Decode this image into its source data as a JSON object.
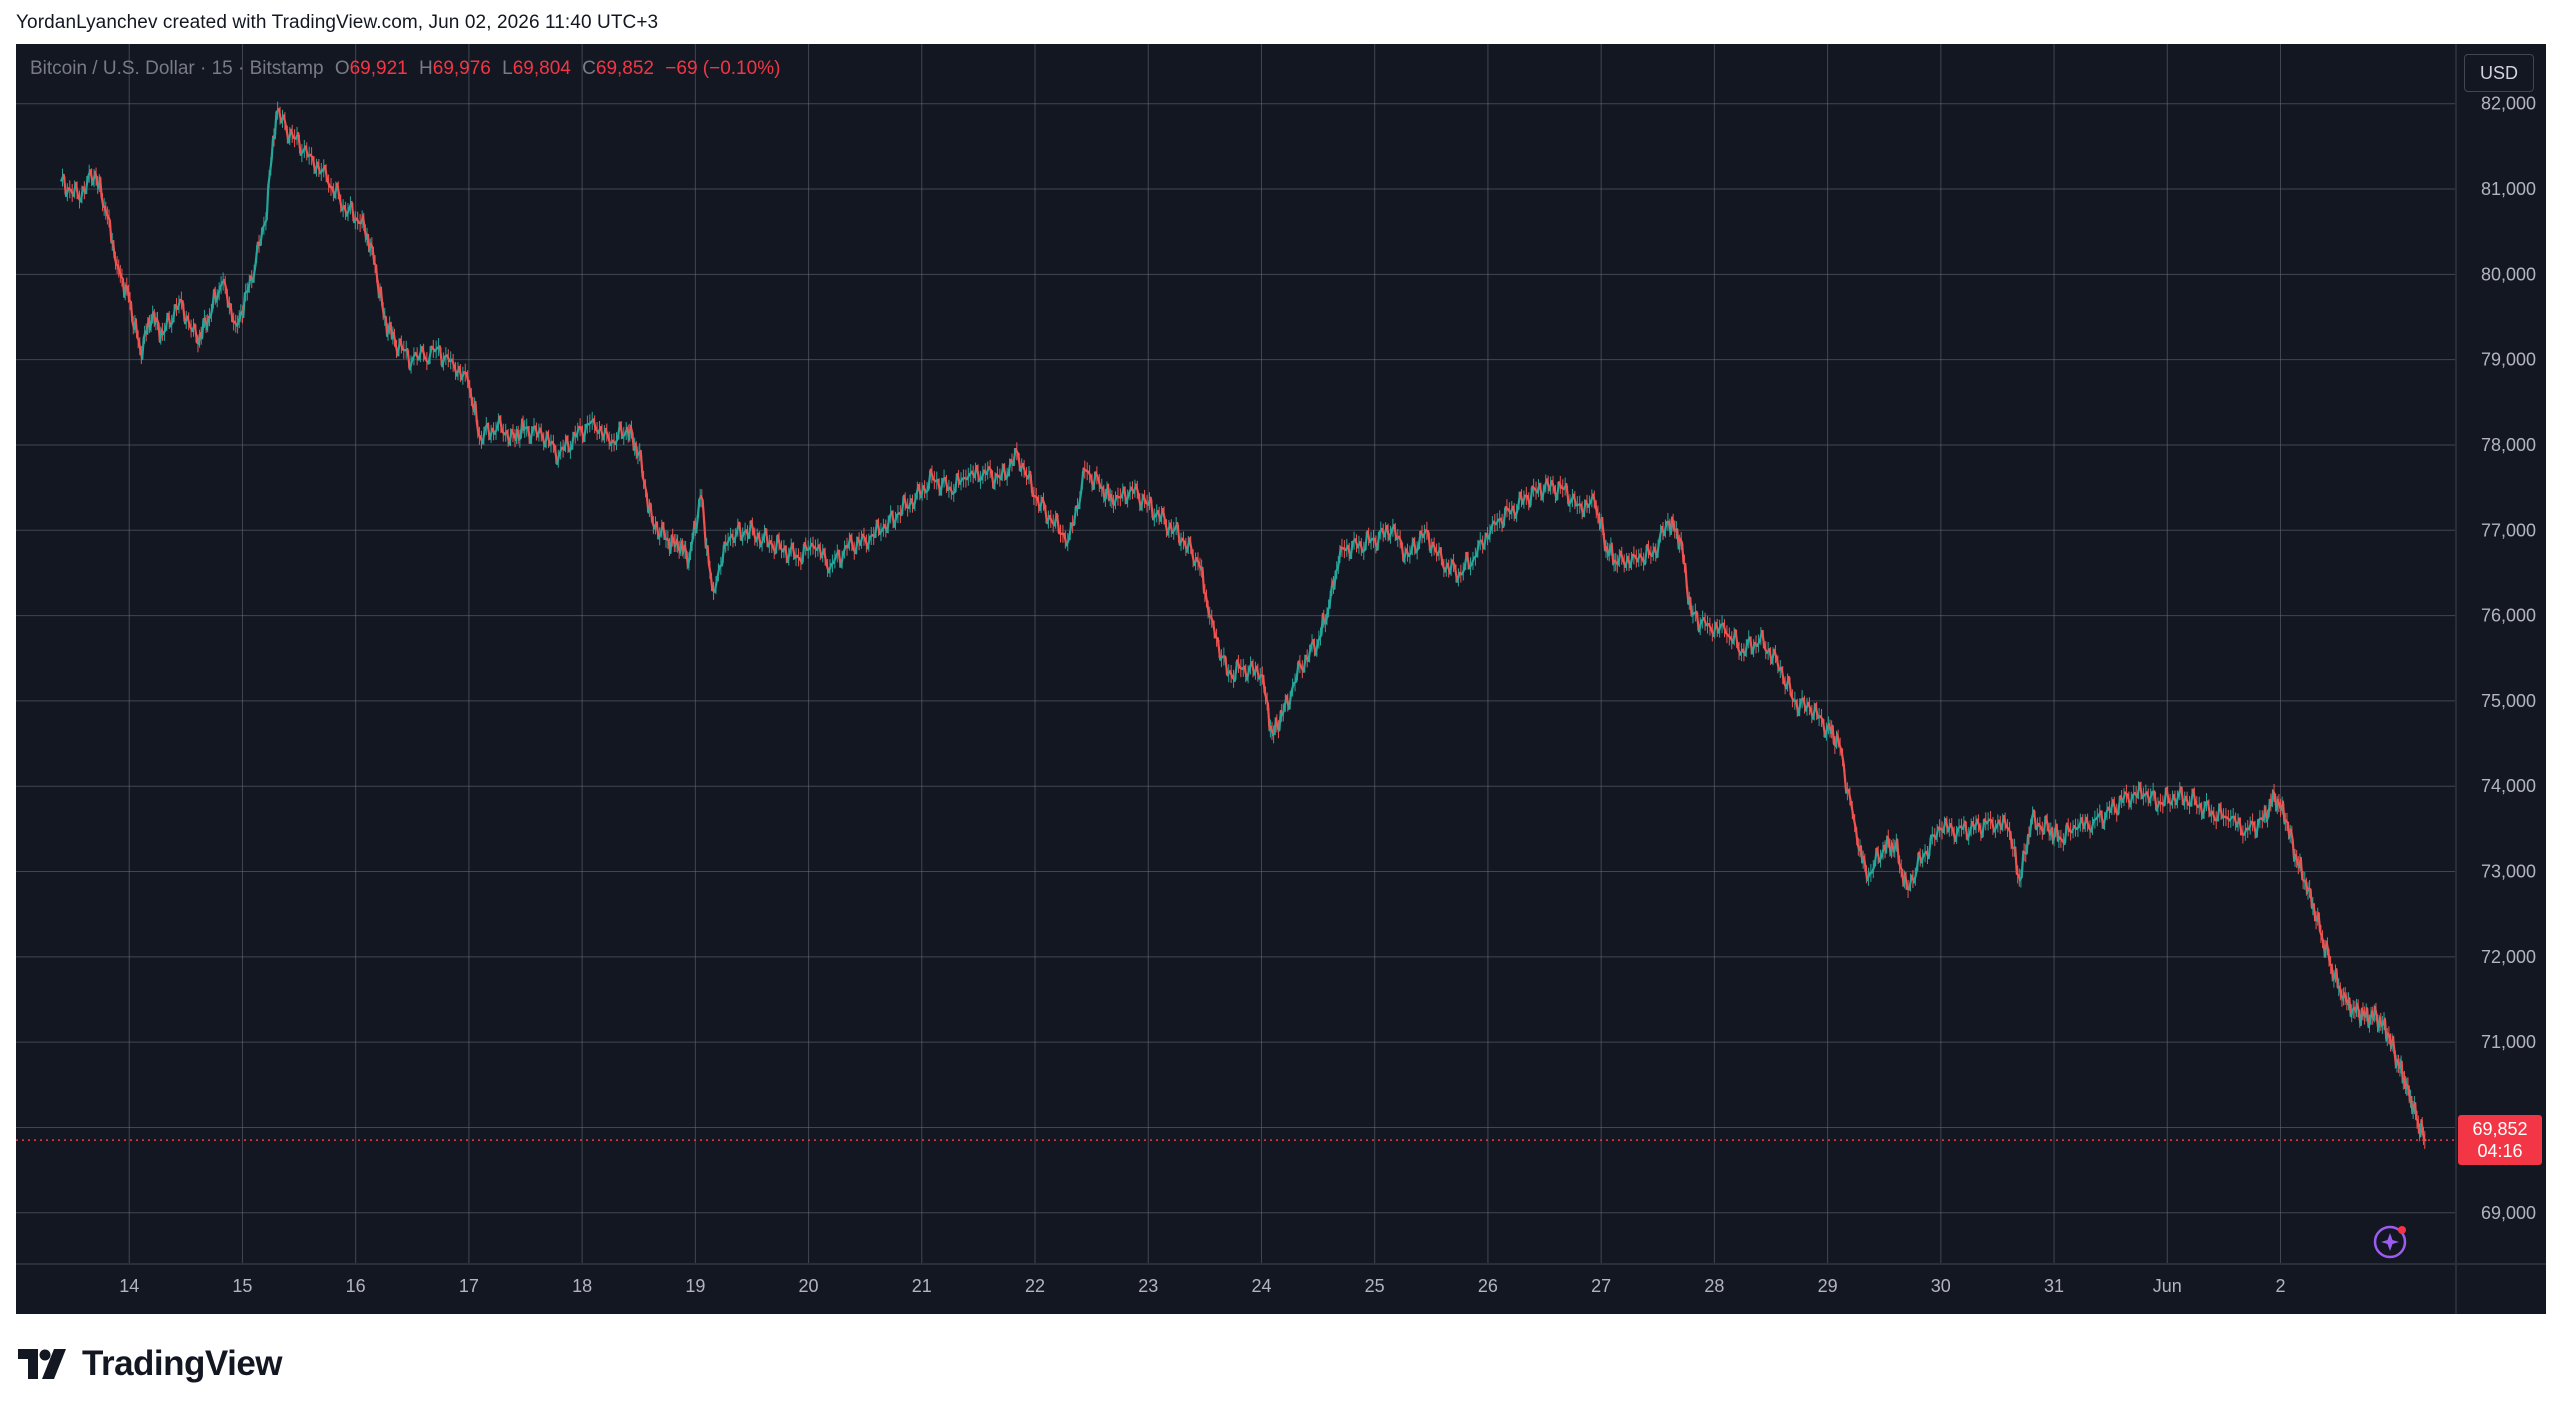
{
  "header": {
    "credit": "YordanLyanchev created with TradingView.com, Jun 02, 2026 11:40 UTC+3"
  },
  "legend": {
    "symbol": "Bitcoin / U.S. Dollar · 15 · Bitstamp",
    "o_label": "O",
    "o_value": "69,921",
    "h_label": "H",
    "h_value": "69,976",
    "l_label": "L",
    "l_value": "69,804",
    "c_label": "C",
    "c_value": "69,852",
    "change": "−69 (−0.10%)"
  },
  "currency_button": "USD",
  "last_price": {
    "value": "69,852",
    "countdown": "04:16"
  },
  "footer": {
    "brand": "TradingView"
  },
  "colors": {
    "background": "#131722",
    "grid": "#6a6d78",
    "up": "#26a69a",
    "down": "#ef5350",
    "axis_text": "#b2b5be"
  },
  "chart_data": {
    "type": "line",
    "title": "",
    "xlabel": "",
    "ylabel": "",
    "x_ticks": [
      "14",
      "15",
      "16",
      "17",
      "18",
      "19",
      "20",
      "21",
      "22",
      "23",
      "24",
      "25",
      "26",
      "27",
      "28",
      "29",
      "30",
      "31",
      "Jun",
      "2"
    ],
    "y_ticks": [
      "82,000",
      "81,000",
      "80,000",
      "79,000",
      "78,000",
      "77,000",
      "76,000",
      "75,000",
      "74,000",
      "73,000",
      "72,000",
      "71,000",
      "70,000",
      "69,000"
    ],
    "ylim": [
      68400,
      82700
    ],
    "last_price": 69852,
    "series": [
      {
        "name": "",
        "points": [
          [
            13.4,
            81100
          ],
          [
            13.55,
            80900
          ],
          [
            13.7,
            81200
          ],
          [
            13.8,
            80700
          ],
          [
            13.9,
            80100
          ],
          [
            14.0,
            79700
          ],
          [
            14.1,
            79100
          ],
          [
            14.2,
            79500
          ],
          [
            14.3,
            79300
          ],
          [
            14.45,
            79700
          ],
          [
            14.6,
            79200
          ],
          [
            14.7,
            79500
          ],
          [
            14.82,
            79900
          ],
          [
            14.95,
            79400
          ],
          [
            15.05,
            79800
          ],
          [
            15.2,
            80600
          ],
          [
            15.3,
            81900
          ],
          [
            15.45,
            81600
          ],
          [
            15.6,
            81400
          ],
          [
            15.75,
            81100
          ],
          [
            15.9,
            80800
          ],
          [
            16.05,
            80600
          ],
          [
            16.15,
            80300
          ],
          [
            16.25,
            79500
          ],
          [
            16.35,
            79200
          ],
          [
            16.5,
            79000
          ],
          [
            16.7,
            79100
          ],
          [
            16.85,
            79000
          ],
          [
            17.0,
            78700
          ],
          [
            17.1,
            78100
          ],
          [
            17.25,
            78200
          ],
          [
            17.4,
            78100
          ],
          [
            17.5,
            78200
          ],
          [
            17.65,
            78100
          ],
          [
            17.8,
            77900
          ],
          [
            17.95,
            78100
          ],
          [
            18.1,
            78300
          ],
          [
            18.25,
            78000
          ],
          [
            18.4,
            78200
          ],
          [
            18.5,
            77900
          ],
          [
            18.62,
            77100
          ],
          [
            18.75,
            76900
          ],
          [
            18.85,
            76800
          ],
          [
            18.95,
            76700
          ],
          [
            19.05,
            77400
          ],
          [
            19.15,
            76300
          ],
          [
            19.3,
            76900
          ],
          [
            19.45,
            77000
          ],
          [
            19.6,
            76900
          ],
          [
            19.75,
            76800
          ],
          [
            19.9,
            76700
          ],
          [
            20.05,
            76800
          ],
          [
            20.2,
            76600
          ],
          [
            20.35,
            76800
          ],
          [
            20.5,
            76900
          ],
          [
            20.65,
            77000
          ],
          [
            20.8,
            77200
          ],
          [
            20.95,
            77400
          ],
          [
            21.1,
            77600
          ],
          [
            21.25,
            77500
          ],
          [
            21.4,
            77600
          ],
          [
            21.55,
            77700
          ],
          [
            21.7,
            77600
          ],
          [
            21.85,
            77900
          ],
          [
            22.0,
            77400
          ],
          [
            22.15,
            77100
          ],
          [
            22.3,
            76900
          ],
          [
            22.45,
            77700
          ],
          [
            22.6,
            77500
          ],
          [
            22.7,
            77300
          ],
          [
            22.85,
            77500
          ],
          [
            23.0,
            77300
          ],
          [
            23.15,
            77100
          ],
          [
            23.3,
            76900
          ],
          [
            23.45,
            76600
          ],
          [
            23.55,
            76000
          ],
          [
            23.7,
            75300
          ],
          [
            23.85,
            75400
          ],
          [
            24.0,
            75300
          ],
          [
            24.1,
            74600
          ],
          [
            24.2,
            74900
          ],
          [
            24.35,
            75400
          ],
          [
            24.5,
            75700
          ],
          [
            24.6,
            76100
          ],
          [
            24.7,
            76800
          ],
          [
            24.85,
            76800
          ],
          [
            25.0,
            76900
          ],
          [
            25.15,
            77000
          ],
          [
            25.3,
            76700
          ],
          [
            25.45,
            77000
          ],
          [
            25.6,
            76600
          ],
          [
            25.75,
            76500
          ],
          [
            25.9,
            76700
          ],
          [
            26.05,
            77100
          ],
          [
            26.2,
            77200
          ],
          [
            26.35,
            77400
          ],
          [
            26.5,
            77500
          ],
          [
            26.65,
            77500
          ],
          [
            26.8,
            77300
          ],
          [
            26.95,
            77300
          ],
          [
            27.05,
            76800
          ],
          [
            27.15,
            76600
          ],
          [
            27.3,
            76700
          ],
          [
            27.45,
            76700
          ],
          [
            27.6,
            77100
          ],
          [
            27.7,
            76900
          ],
          [
            27.8,
            76000
          ],
          [
            27.95,
            75900
          ],
          [
            28.1,
            75800
          ],
          [
            28.25,
            75600
          ],
          [
            28.4,
            75700
          ],
          [
            28.55,
            75500
          ],
          [
            28.7,
            75000
          ],
          [
            28.85,
            74900
          ],
          [
            29.0,
            74700
          ],
          [
            29.1,
            74500
          ],
          [
            29.25,
            73500
          ],
          [
            29.35,
            72900
          ],
          [
            29.5,
            73300
          ],
          [
            29.6,
            73300
          ],
          [
            29.7,
            72800
          ],
          [
            29.85,
            73200
          ],
          [
            30.0,
            73500
          ],
          [
            30.15,
            73500
          ],
          [
            30.3,
            73500
          ],
          [
            30.45,
            73600
          ],
          [
            30.6,
            73500
          ],
          [
            30.7,
            72900
          ],
          [
            30.8,
            73600
          ],
          [
            30.95,
            73500
          ],
          [
            31.05,
            73400
          ],
          [
            31.2,
            73500
          ],
          [
            31.35,
            73600
          ],
          [
            31.5,
            73700
          ],
          [
            31.65,
            73900
          ],
          [
            31.8,
            73900
          ],
          [
            31.95,
            73800
          ],
          [
            32.1,
            73900
          ],
          [
            32.25,
            73800
          ],
          [
            32.4,
            73700
          ],
          [
            32.55,
            73600
          ],
          [
            32.7,
            73500
          ],
          [
            32.85,
            73600
          ],
          [
            32.95,
            73900
          ],
          [
            33.05,
            73600
          ],
          [
            33.15,
            73100
          ],
          [
            33.25,
            72800
          ],
          [
            33.35,
            72300
          ],
          [
            33.45,
            71900
          ],
          [
            33.55,
            71500
          ],
          [
            33.65,
            71400
          ],
          [
            33.75,
            71300
          ],
          [
            33.85,
            71300
          ],
          [
            33.95,
            71100
          ],
          [
            34.05,
            70700
          ],
          [
            34.12,
            70500
          ],
          [
            34.2,
            70100
          ],
          [
            34.28,
            69852
          ]
        ]
      }
    ]
  }
}
